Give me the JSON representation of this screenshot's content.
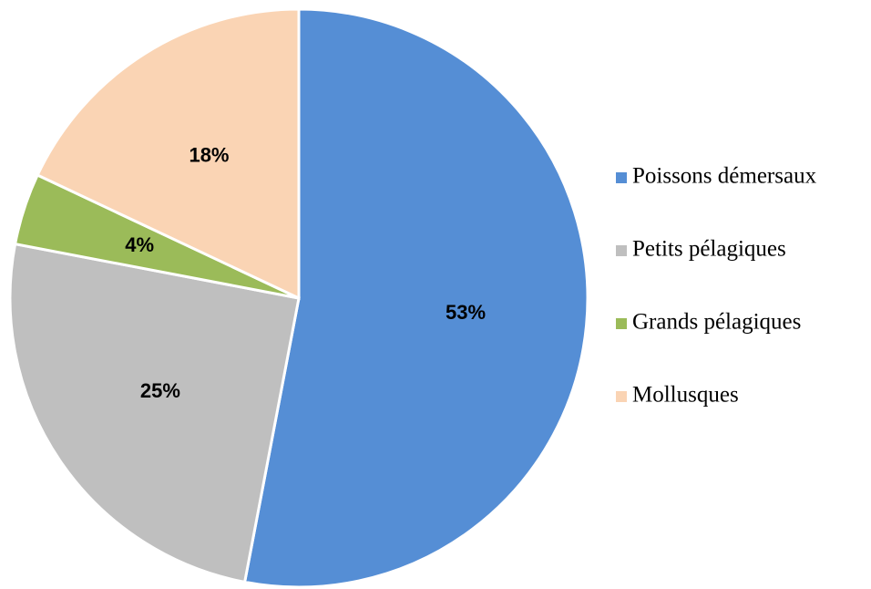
{
  "chart_data": {
    "type": "pie",
    "categories": [
      "Poissons démersaux",
      "Petits pélagiques",
      "Grands pélagiques",
      "Mollusques"
    ],
    "values": [
      53,
      25,
      4,
      18
    ],
    "value_labels": [
      "53%",
      "25%",
      "4%",
      "18%"
    ],
    "colors": [
      "#558ed5",
      "#bfbfbf",
      "#9bbb59",
      "#fad4b4"
    ],
    "legend": "right"
  }
}
